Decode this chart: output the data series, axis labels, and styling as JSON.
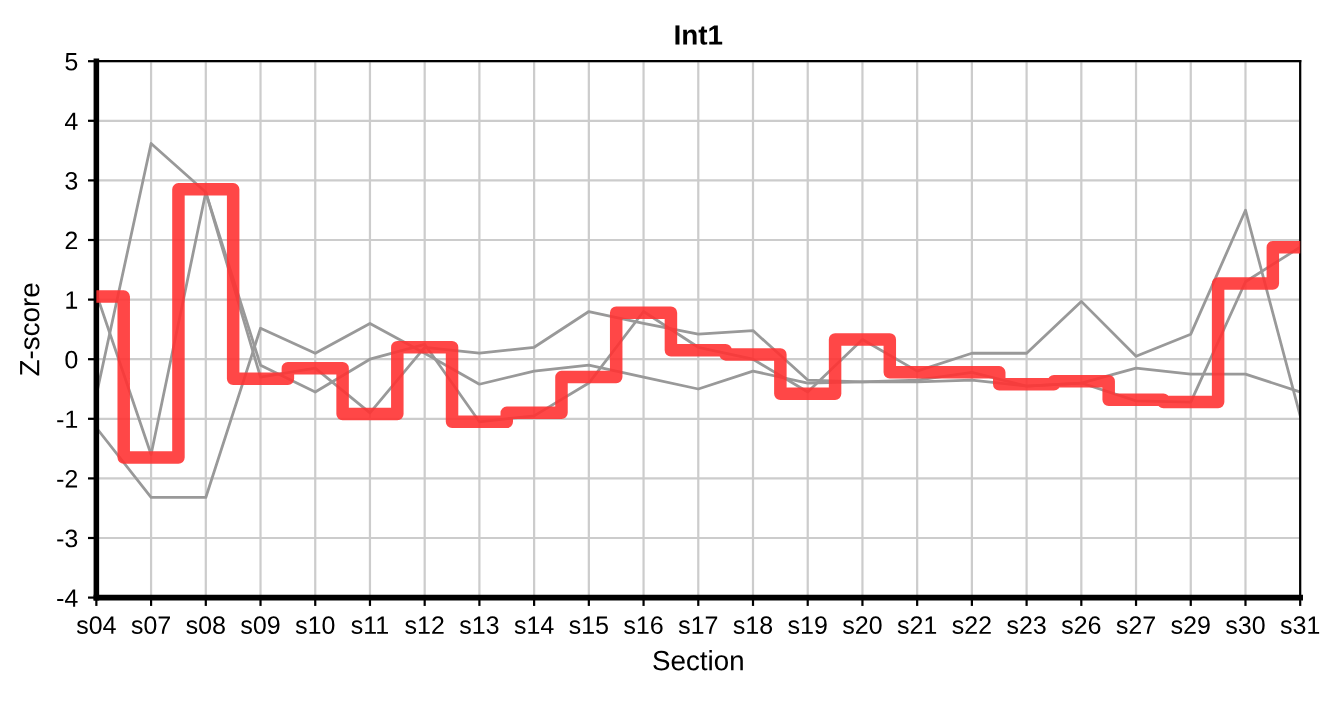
{
  "chart_data": {
    "type": "line",
    "title": "Int1",
    "xlabel": "Section",
    "ylabel": "Z-score",
    "categories": [
      "s04",
      "s07",
      "s08",
      "s09",
      "s10",
      "s11",
      "s12",
      "s13",
      "s14",
      "s15",
      "s16",
      "s17",
      "s18",
      "s19",
      "s20",
      "s21",
      "s22",
      "s23",
      "s26",
      "s27",
      "s29",
      "s30",
      "s31"
    ],
    "series": [
      {
        "color": "#999999",
        "values": [
          -0.6,
          3.62,
          2.8,
          -0.1,
          -0.55,
          0.0,
          0.25,
          -1.05,
          -0.95,
          -0.4,
          0.8,
          0.2,
          0.0,
          -0.55,
          0.33,
          -0.2,
          0.1,
          0.1,
          0.97,
          0.05,
          0.42,
          2.5,
          -0.95
        ]
      },
      {
        "color": "#999999",
        "values": [
          1.1,
          -1.6,
          2.8,
          -0.3,
          -0.15,
          -0.9,
          0.2,
          0.1,
          0.2,
          0.8,
          0.6,
          0.42,
          0.48,
          -0.35,
          -0.38,
          -0.38,
          -0.35,
          -0.45,
          -0.4,
          -0.15,
          -0.25,
          -0.25,
          -0.55
        ]
      },
      {
        "color": "#999999",
        "values": [
          -1.15,
          -2.32,
          -2.32,
          0.52,
          0.1,
          0.6,
          0.1,
          -0.42,
          -0.2,
          -0.1,
          -0.3,
          -0.5,
          -0.2,
          -0.4,
          -0.38,
          -0.35,
          -0.22,
          -0.45,
          -0.4,
          -0.7,
          -0.72,
          1.3,
          1.88
        ]
      },
      {
        "type": "step",
        "color": "#ff3333",
        "values": [
          1.05,
          -1.65,
          2.85,
          -0.33,
          -0.15,
          -0.92,
          0.2,
          -1.05,
          -0.9,
          -0.3,
          0.78,
          0.15,
          0.08,
          -0.58,
          0.33,
          -0.22,
          -0.22,
          -0.42,
          -0.37,
          -0.68,
          -0.72,
          1.27,
          1.88
        ]
      }
    ],
    "ylim": [
      -4,
      5
    ],
    "yticks": [
      -4,
      -3,
      -2,
      -1,
      0,
      1,
      2,
      3,
      4,
      5
    ],
    "grid": true
  }
}
